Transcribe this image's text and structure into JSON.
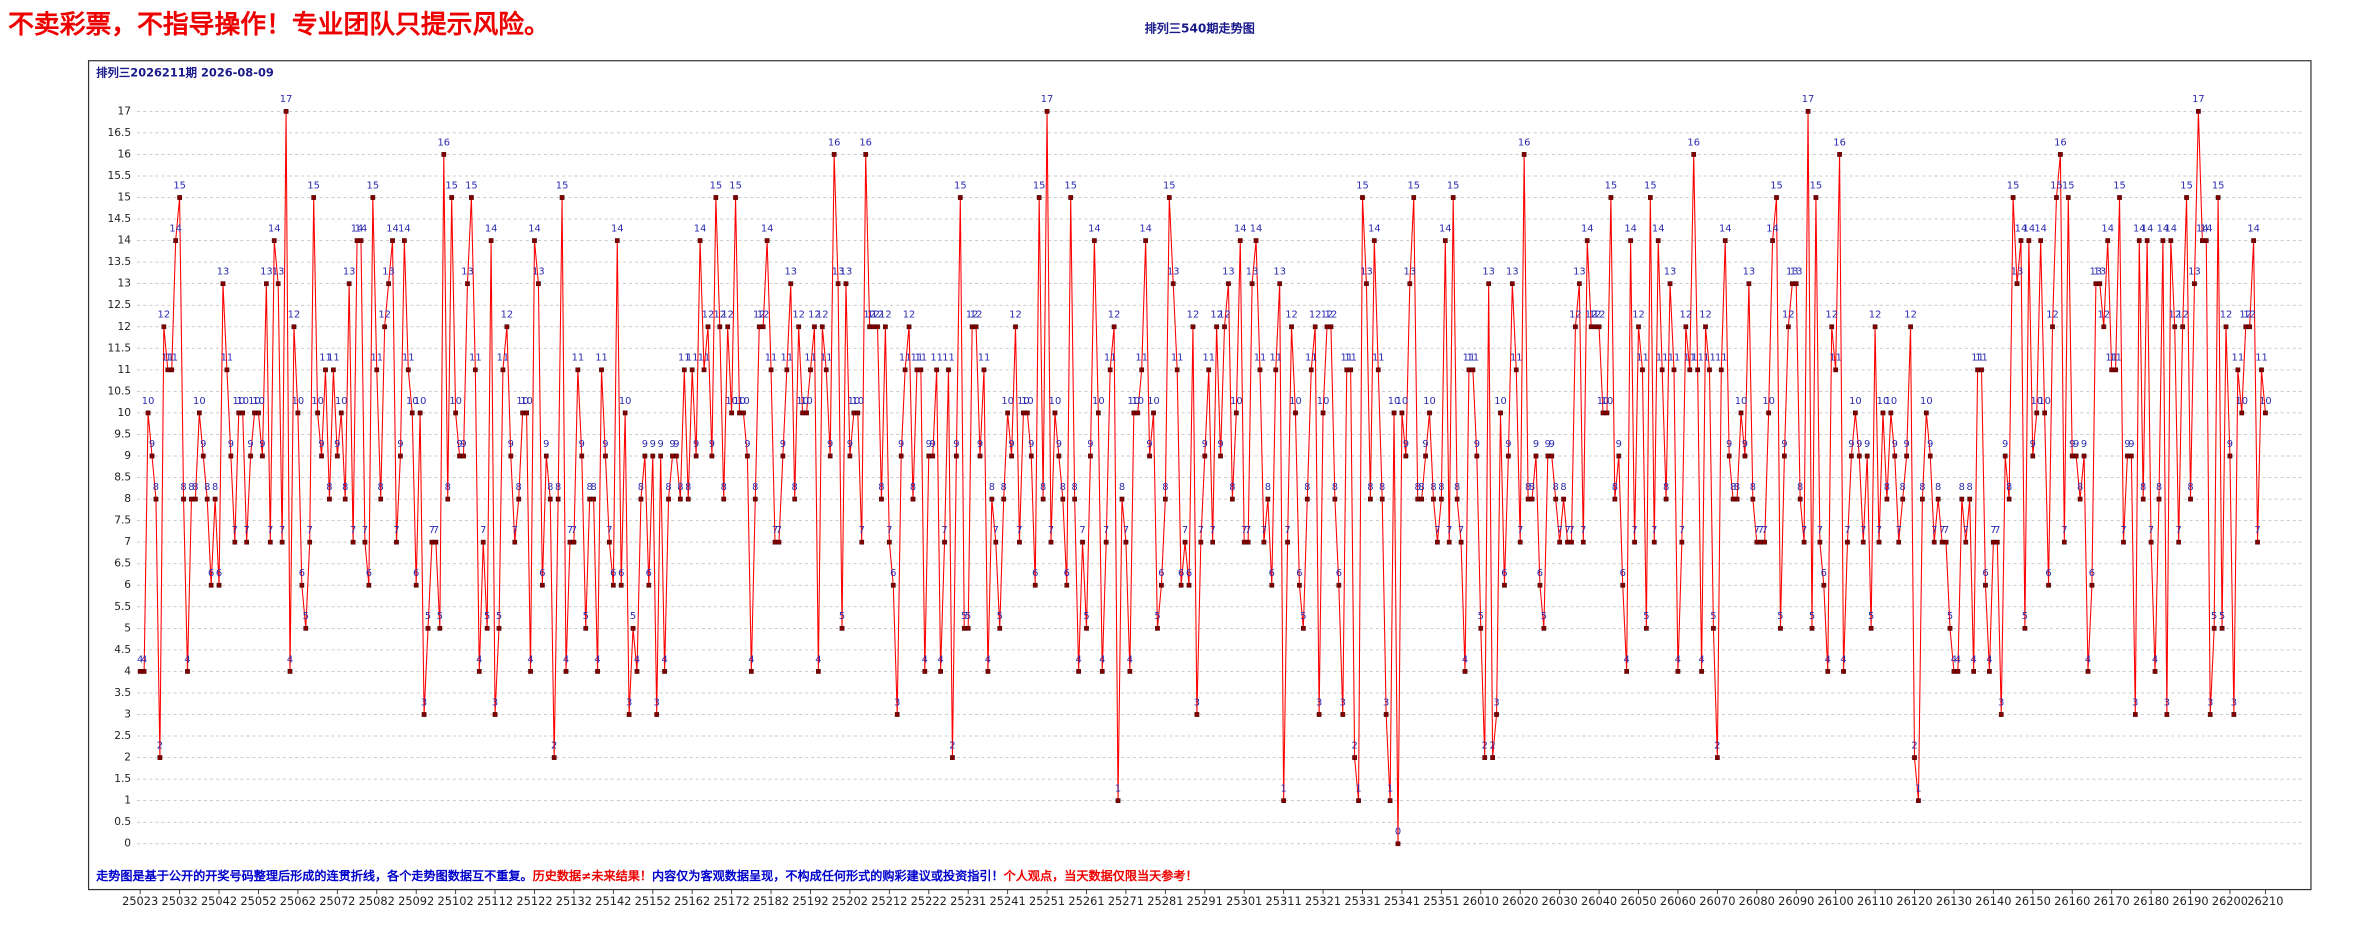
{
  "header": {
    "warning": "不卖彩票，不指导操作！专业团队只提示风险。"
  },
  "chart_data": {
    "type": "line",
    "title": "排列三540期走势图",
    "subtitle": "排列三2026211期  2026-08-09",
    "notes": [
      {
        "text": "走势图是基于公开的开奖号码整理后形成的连贯折线，各个走势图数据互不重复。",
        "color": "#0000cc"
      },
      {
        "text": "历史数据≠未来结果！",
        "color": "#ee0000"
      },
      {
        "text": "内容仅为客观数据呈现，不构成任何形式的购彩建议或投资指引！",
        "color": "#0000cc"
      },
      {
        "text": "个人观点，当天数据仅限当天参考！",
        "color": "#ee0000"
      }
    ],
    "color": "#ff0000",
    "marker_color": "#800000",
    "label_color": "#2a2ab0",
    "grid": true,
    "ylim": [
      -0.5,
      17.4
    ],
    "yticks": [
      0,
      0.5,
      1,
      1.5,
      2,
      2.5,
      3,
      3.5,
      4,
      4.5,
      5,
      5.5,
      6,
      6.5,
      7,
      7.5,
      8,
      8.5,
      9,
      9.5,
      10,
      10.5,
      11,
      11.5,
      12,
      12.5,
      13,
      13.5,
      14,
      14.5,
      15,
      15.5,
      16,
      16.5,
      17
    ],
    "categories": [
      "25023",
      null,
      null,
      null,
      null,
      null,
      null,
      null,
      null,
      null,
      "25032",
      null,
      null,
      null,
      null,
      null,
      null,
      null,
      null,
      null,
      "25042",
      null,
      null,
      null,
      null,
      null,
      null,
      null,
      null,
      null,
      "25052",
      null,
      null,
      null,
      null,
      null,
      null,
      null,
      null,
      null,
      "25062",
      null,
      null,
      null,
      null,
      null,
      null,
      null,
      null,
      null,
      "25072",
      null,
      null,
      null,
      null,
      null,
      null,
      null,
      null,
      null,
      "25082",
      null,
      null,
      null,
      null,
      null,
      null,
      null,
      null,
      null,
      "25092",
      null,
      null,
      null,
      null,
      null,
      null,
      null,
      null,
      null,
      "25102",
      null,
      null,
      null,
      null,
      null,
      null,
      null,
      null,
      null,
      "25112",
      null,
      null,
      null,
      null,
      null,
      null,
      null,
      null,
      null,
      "25122",
      null,
      null,
      null,
      null,
      null,
      null,
      null,
      null,
      null,
      "25132",
      null,
      null,
      null,
      null,
      null,
      null,
      null,
      null,
      null,
      "25142",
      null,
      null,
      null,
      null,
      null,
      null,
      null,
      null,
      null,
      "25152",
      null,
      null,
      null,
      null,
      null,
      null,
      null,
      null,
      null,
      "25162",
      null,
      null,
      null,
      null,
      null,
      null,
      null,
      null,
      null,
      "25172",
      null,
      null,
      null,
      null,
      null,
      null,
      null,
      null,
      null,
      "25182",
      null,
      null,
      null,
      null,
      null,
      null,
      null,
      null,
      null,
      "25192",
      null,
      null,
      null,
      null,
      null,
      null,
      null,
      null,
      null,
      "25202",
      null,
      null,
      null,
      null,
      null,
      null,
      null,
      null,
      null,
      "25212",
      null,
      null,
      null,
      null,
      null,
      null,
      null,
      null,
      null,
      "25222",
      null,
      null,
      null,
      null,
      null,
      null,
      null,
      null,
      null,
      "25231",
      null,
      null,
      null,
      null,
      null,
      null,
      null,
      null,
      null,
      "25241",
      null,
      null,
      null,
      null,
      null,
      null,
      null,
      null,
      null,
      "25251",
      null,
      null,
      null,
      null,
      null,
      null,
      null,
      null,
      null,
      "25261",
      null,
      null,
      null,
      null,
      null,
      null,
      null,
      null,
      null,
      "25271",
      null,
      null,
      null,
      null,
      null,
      null,
      null,
      null,
      null,
      "25281",
      null,
      null,
      null,
      null,
      null,
      null,
      null,
      null,
      null,
      "25291",
      null,
      null,
      null,
      null,
      null,
      null,
      null,
      null,
      null,
      "25301",
      null,
      null,
      null,
      null,
      null,
      null,
      null,
      null,
      null,
      "25311",
      null,
      null,
      null,
      null,
      null,
      null,
      null,
      null,
      null,
      "25321",
      null,
      null,
      null,
      null,
      null,
      null,
      null,
      null,
      null,
      "25331",
      null,
      null,
      null,
      null,
      null,
      null,
      null,
      null,
      null,
      "25341",
      null,
      null,
      null,
      null,
      null,
      null,
      null,
      null,
      null,
      "25351",
      null,
      null,
      null,
      null,
      null,
      null,
      null,
      null,
      null,
      "26010",
      null,
      null,
      null,
      null,
      null,
      null,
      null,
      null,
      null,
      "26020",
      null,
      null,
      null,
      null,
      null,
      null,
      null,
      null,
      null,
      "26030",
      null,
      null,
      null,
      null,
      null,
      null,
      null,
      null,
      null,
      "26040",
      null,
      null,
      null,
      null,
      null,
      null,
      null,
      null,
      null,
      "26050",
      null,
      null,
      null,
      null,
      null,
      null,
      null,
      null,
      null,
      "26060",
      null,
      null,
      null,
      null,
      null,
      null,
      null,
      null,
      null,
      "26070",
      null,
      null,
      null,
      null,
      null,
      null,
      null,
      null,
      null,
      "26080",
      null,
      null,
      null,
      null,
      null,
      null,
      null,
      null,
      null,
      "26090",
      null,
      null,
      null,
      null,
      null,
      null,
      null,
      null,
      null,
      "26100",
      null,
      null,
      null,
      null,
      null,
      null,
      null,
      null,
      null,
      "26110",
      null,
      null,
      null,
      null,
      null,
      null,
      null,
      null,
      null,
      "26120",
      null,
      null,
      null,
      null,
      null,
      null,
      null,
      null,
      null,
      "26130",
      null,
      null,
      null,
      null,
      null,
      null,
      null,
      null,
      null,
      "26140",
      null,
      null,
      null,
      null,
      null,
      null,
      null,
      null,
      null,
      "26150",
      null,
      null,
      null,
      null,
      null,
      null,
      null,
      null,
      null,
      "26160",
      null,
      null,
      null,
      null,
      null,
      null,
      null,
      null,
      null,
      "26170",
      null,
      null,
      null,
      null,
      null,
      null,
      null,
      null,
      null,
      "26180",
      null,
      null,
      null,
      null,
      null,
      null,
      null,
      null,
      null,
      "26190",
      null,
      null,
      null,
      null,
      null,
      null,
      null,
      null,
      null,
      "26200",
      null,
      null,
      null,
      null,
      null,
      null,
      null,
      null,
      "26210"
    ],
    "values": [
      4,
      4,
      10,
      9,
      8,
      2,
      12,
      11,
      11,
      14,
      15,
      8,
      4,
      8,
      8,
      10,
      9,
      8,
      6,
      8,
      6,
      13,
      11,
      9,
      7,
      10,
      10,
      7,
      9,
      10,
      10,
      9,
      13,
      7,
      14,
      13,
      7,
      17,
      4,
      12,
      10,
      6,
      5,
      7,
      15,
      10,
      9,
      11,
      8,
      11,
      9,
      10,
      8,
      13,
      7,
      14,
      14,
      7,
      6,
      15,
      11,
      8,
      12,
      13,
      14,
      7,
      9,
      14,
      11,
      10,
      6,
      10,
      3,
      5,
      7,
      7,
      5,
      16,
      8,
      15,
      10,
      9,
      9,
      13,
      15,
      11,
      4,
      7,
      5,
      14,
      3,
      5,
      11,
      12,
      9,
      7,
      8,
      10,
      10,
      4,
      14,
      13,
      6,
      9,
      8,
      2,
      8,
      15,
      4,
      7,
      7,
      11,
      9,
      5,
      8,
      8,
      4,
      11,
      9,
      7,
      6,
      14,
      6,
      10,
      3,
      5,
      4,
      8,
      9,
      6,
      9,
      3,
      9,
      4,
      8,
      9,
      9,
      8,
      11,
      8,
      11,
      9,
      14,
      11,
      12,
      9,
      15,
      12,
      8,
      12,
      10,
      15,
      10,
      10,
      9,
      4,
      8,
      12,
      12,
      14,
      11,
      7,
      7,
      9,
      11,
      13,
      8,
      12,
      10,
      10,
      11,
      12,
      4,
      12,
      11,
      9,
      16,
      13,
      5,
      13,
      9,
      10,
      10,
      7,
      16,
      12,
      12,
      12,
      8,
      12,
      7,
      6,
      3,
      9,
      11,
      12,
      8,
      11,
      11,
      4,
      9,
      9,
      11,
      4,
      7,
      11,
      2,
      9,
      15,
      5,
      5,
      12,
      12,
      9,
      11,
      4,
      8,
      7,
      5,
      8,
      10,
      9,
      12,
      7,
      10,
      10,
      9,
      6,
      15,
      8,
      17,
      7,
      10,
      9,
      8,
      6,
      15,
      8,
      4,
      7,
      5,
      9,
      14,
      10,
      4,
      7,
      11,
      12,
      1,
      8,
      7,
      4,
      10,
      10,
      11,
      14,
      9,
      10,
      5,
      6,
      8,
      15,
      13,
      11,
      6,
      7,
      6,
      12,
      3,
      7,
      9,
      11,
      7,
      12,
      9,
      12,
      13,
      8,
      10,
      14,
      7,
      7,
      13,
      14,
      11,
      7,
      8,
      6,
      11,
      13,
      1,
      7,
      12,
      10,
      6,
      5,
      8,
      11,
      12,
      3,
      10,
      12,
      12,
      8,
      6,
      3,
      11,
      11,
      2,
      1,
      15,
      13,
      8,
      14,
      11,
      8,
      3,
      1,
      10,
      0,
      10,
      9,
      13,
      15,
      8,
      8,
      9,
      10,
      8,
      7,
      8,
      14,
      7,
      15,
      8,
      7,
      4,
      11,
      11,
      9,
      5,
      2,
      13,
      2,
      3,
      10,
      6,
      9,
      13,
      11,
      7,
      16,
      8,
      8,
      9,
      6,
      5,
      9,
      9,
      8,
      7,
      8,
      7,
      7,
      12,
      13,
      7,
      14,
      12,
      12,
      12,
      10,
      10,
      15,
      8,
      9,
      6,
      4,
      14,
      7,
      12,
      11,
      5,
      15,
      7,
      14,
      11,
      8,
      13,
      11,
      4,
      7,
      12,
      11,
      16,
      11,
      4,
      12,
      11,
      5,
      2,
      11,
      14,
      9,
      8,
      8,
      10,
      9,
      13,
      8,
      7,
      7,
      7,
      10,
      14,
      15,
      5,
      9,
      12,
      13,
      13,
      8,
      7,
      17,
      5,
      15,
      7,
      6,
      4,
      12,
      11,
      16,
      4,
      7,
      9,
      10,
      9,
      7,
      9,
      5,
      12,
      7,
      10,
      8,
      10,
      9,
      7,
      8,
      9,
      12,
      2,
      1,
      8,
      10,
      9,
      7,
      8,
      7,
      7,
      5,
      4,
      4,
      8,
      7,
      8,
      4,
      11,
      11,
      6,
      4,
      7,
      7,
      3,
      9,
      8,
      15,
      13,
      14,
      5,
      14,
      9,
      10,
      14,
      10,
      6,
      12,
      15,
      16,
      7,
      15,
      9,
      9,
      8,
      9,
      4,
      6,
      13,
      13,
      12,
      14,
      11,
      11,
      15,
      7,
      9,
      9,
      3,
      14,
      8,
      14,
      7,
      4,
      8,
      14,
      3,
      14,
      12,
      7,
      12,
      15,
      8,
      13,
      17,
      14,
      14,
      3,
      5,
      15,
      5,
      12,
      9,
      3,
      11,
      10,
      12,
      12,
      14,
      7,
      11,
      10
    ]
  }
}
